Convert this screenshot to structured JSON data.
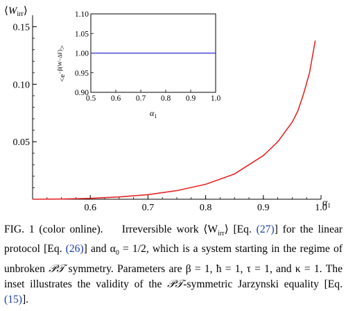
{
  "chart_data": [
    {
      "type": "line",
      "title": "",
      "ylabel": "<W_irr>",
      "xlabel": "α1",
      "xlim": [
        0.5,
        1.0
      ],
      "ylim": [
        0.0,
        0.16
      ],
      "xticks": [
        "0.6",
        "0.7",
        "0.8",
        "0.9",
        "1.0"
      ],
      "yticks": [
        "0.05",
        "0.10",
        "0.15"
      ],
      "grid": false,
      "series": [
        {
          "color": "#e32626",
          "x": [
            0.5,
            0.55,
            0.6,
            0.65,
            0.7,
            0.75,
            0.8,
            0.85,
            0.9,
            0.925,
            0.95,
            0.96,
            0.97,
            0.98,
            0.99
          ],
          "y": [
            0.0,
            0.0002,
            0.0008,
            0.002,
            0.004,
            0.0075,
            0.013,
            0.022,
            0.038,
            0.05,
            0.067,
            0.077,
            0.092,
            0.11,
            0.138
          ]
        }
      ]
    },
    {
      "type": "line",
      "title": "",
      "ylabel": "<e^{-β(W-ΔF)}>",
      "xlabel": "α1",
      "xlim": [
        0.5,
        1.0
      ],
      "ylim": [
        0.9,
        1.1
      ],
      "xticks": [
        "0.5",
        "0.6",
        "0.7",
        "0.8",
        "0.9",
        "1.0"
      ],
      "yticks": [
        "0.90",
        "0.95",
        "1.00",
        "1.05",
        "1.10"
      ],
      "grid": false,
      "series": [
        {
          "color": "#2a2ad6",
          "x": [
            0.5,
            1.0
          ],
          "y": [
            1.0,
            1.0
          ]
        }
      ]
    }
  ],
  "caption": {
    "fig_label": "FIG. 1 (color online).",
    "t1": "Irreversible work ⟨W",
    "t1_sub": "irr",
    "t2": "⟩ [Eq. ",
    "ref_eq27": "(27)",
    "t3": "] for the linear protocol [Eq. ",
    "ref_eq26": "(26)",
    "t4": "] and α",
    "t4_sub": "0",
    "t5": " = 1/2, which is a system starting in the regime of unbroken ",
    "pt1": "𝒫𝒯",
    "t6": " symmetry. Parameters are β = 1, ħ = 1, τ = 1, and κ = 1. The inset illustrates the validity of the ",
    "pt2": "𝒫𝒯",
    "t7": "-symmetric Jarzynski equality [Eq. ",
    "ref_eq15": "(15)",
    "t8": "]."
  }
}
